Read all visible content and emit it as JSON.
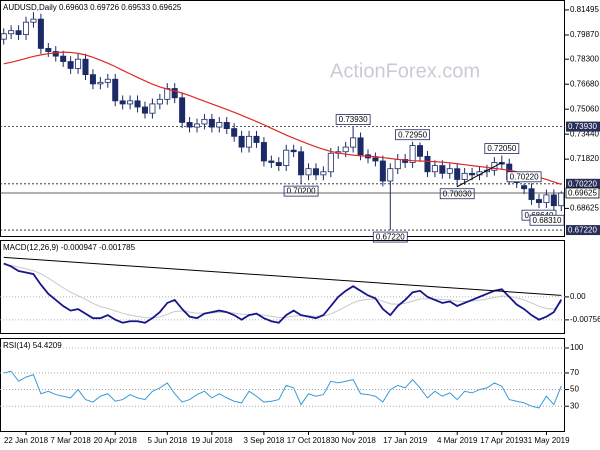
{
  "chart_data": [
    {
      "type": "candlestick",
      "title": "AUDUSD,Daily  0.69603 0.69726 0.69533 0.69625",
      "watermark": "ActionForex.com",
      "categories": [
        null,
        null,
        null,
        "22 Jan 2018",
        null,
        null,
        null,
        null,
        null,
        "7 Mar 2018",
        null,
        null,
        null,
        null,
        null,
        "20 Apr 2018",
        null,
        null,
        null,
        null,
        null,
        null,
        "5 Jun 2018",
        null,
        null,
        null,
        null,
        null,
        "19 Jul 2018",
        null,
        null,
        null,
        null,
        null,
        null,
        "3 Sep 2018",
        null,
        null,
        null,
        null,
        null,
        "17 Oct 2018",
        null,
        null,
        null,
        null,
        null,
        "30 Nov 2018",
        null,
        null,
        null,
        null,
        null,
        null,
        "17 Jan 2019",
        null,
        null,
        null,
        null,
        null,
        null,
        "4 Mar 2019",
        null,
        null,
        null,
        null,
        null,
        "17 Apr 2019",
        null,
        null,
        null,
        null,
        null,
        "31 May 2019",
        null,
        null
      ],
      "opens": [
        0.796,
        0.7995,
        0.8015,
        0.799,
        0.807,
        0.809,
        0.79,
        0.788,
        0.785,
        0.7815,
        0.777,
        0.783,
        0.773,
        0.767,
        0.768,
        0.77,
        0.756,
        0.754,
        0.756,
        0.752,
        0.748,
        0.754,
        0.757,
        0.764,
        0.758,
        0.742,
        0.739,
        0.741,
        0.744,
        0.739,
        0.742,
        0.738,
        0.733,
        0.726,
        0.733,
        0.729,
        0.717,
        0.716,
        0.714,
        0.724,
        0.723,
        0.708,
        0.712,
        0.708,
        0.71,
        0.722,
        0.723,
        0.726,
        0.732,
        0.721,
        0.719,
        0.717,
        0.704,
        0.712,
        0.718,
        0.716,
        0.727,
        0.72,
        0.71,
        0.714,
        0.709,
        0.712,
        0.705,
        0.709,
        0.708,
        0.71,
        0.711,
        0.716,
        0.715,
        0.705,
        0.701,
        0.699,
        0.692,
        0.69,
        0.695,
        0.688
      ],
      "highs": [
        0.803,
        0.805,
        0.805,
        0.8105,
        0.8136,
        0.8125,
        0.7935,
        0.7915,
        0.7885,
        0.785,
        0.7865,
        0.7865,
        0.7765,
        0.7715,
        0.7735,
        0.7735,
        0.7595,
        0.7595,
        0.7595,
        0.7555,
        0.7575,
        0.7605,
        0.7675,
        0.7675,
        0.7615,
        0.7455,
        0.7445,
        0.7475,
        0.7475,
        0.7455,
        0.7455,
        0.7415,
        0.7365,
        0.7365,
        0.7365,
        0.7325,
        0.7205,
        0.7195,
        0.7275,
        0.7275,
        0.7265,
        0.7155,
        0.7155,
        0.7135,
        0.7255,
        0.7265,
        0.7294,
        0.7393,
        0.7355,
        0.7245,
        0.7225,
        0.7205,
        0.7155,
        0.7215,
        0.7215,
        0.7295,
        0.729,
        0.7235,
        0.7175,
        0.7175,
        0.7155,
        0.7155,
        0.7125,
        0.7125,
        0.7135,
        0.7145,
        0.7195,
        0.7205,
        0.7185,
        0.7085,
        0.7022,
        0.7025,
        0.6955,
        0.6985,
        0.6985,
        0.6973
      ],
      "lows": [
        0.7925,
        0.796,
        0.7955,
        0.7955,
        0.8035,
        0.7865,
        0.7845,
        0.7815,
        0.778,
        0.7735,
        0.7735,
        0.7695,
        0.7635,
        0.7635,
        0.7645,
        0.7525,
        0.7505,
        0.7505,
        0.7485,
        0.7445,
        0.7445,
        0.7505,
        0.7535,
        0.7545,
        0.7385,
        0.7355,
        0.7355,
        0.7375,
        0.7355,
        0.7355,
        0.7345,
        0.7295,
        0.7225,
        0.7225,
        0.7255,
        0.7135,
        0.7125,
        0.7105,
        0.7105,
        0.7195,
        0.702,
        0.7045,
        0.7045,
        0.7045,
        0.7065,
        0.7185,
        0.7195,
        0.7225,
        0.7175,
        0.7155,
        0.7135,
        0.7005,
        0.6722,
        0.7085,
        0.7125,
        0.7125,
        0.7165,
        0.7065,
        0.7065,
        0.7055,
        0.7055,
        0.7003,
        0.7015,
        0.7045,
        0.7045,
        0.7065,
        0.7075,
        0.7115,
        0.7015,
        0.6995,
        0.6955,
        0.6885,
        0.6864,
        0.6865,
        0.6831,
        0.6845
      ],
      "closes": [
        0.7995,
        0.8015,
        0.799,
        0.807,
        0.809,
        0.79,
        0.788,
        0.785,
        0.7815,
        0.777,
        0.783,
        0.773,
        0.767,
        0.768,
        0.77,
        0.756,
        0.754,
        0.756,
        0.752,
        0.748,
        0.754,
        0.757,
        0.764,
        0.758,
        0.742,
        0.739,
        0.741,
        0.744,
        0.739,
        0.742,
        0.738,
        0.733,
        0.726,
        0.733,
        0.729,
        0.717,
        0.716,
        0.714,
        0.724,
        0.723,
        0.708,
        0.712,
        0.708,
        0.71,
        0.722,
        0.723,
        0.726,
        0.732,
        0.721,
        0.719,
        0.717,
        0.704,
        0.712,
        0.718,
        0.716,
        0.727,
        0.72,
        0.71,
        0.714,
        0.709,
        0.712,
        0.705,
        0.709,
        0.708,
        0.71,
        0.711,
        0.716,
        0.715,
        0.705,
        0.703,
        0.699,
        0.692,
        0.69,
        0.695,
        0.688,
        0.69625
      ],
      "color_up": "#ffffff",
      "color_down": "#1c2a66",
      "outline": "#1c2a66",
      "moving_average": {
        "color": "#e02828",
        "values": [
          0.78,
          0.781,
          0.7822,
          0.7835,
          0.7848,
          0.7858,
          0.7866,
          0.7872,
          0.7876,
          0.7874,
          0.7868,
          0.7858,
          0.7842,
          0.7824,
          0.7804,
          0.7782,
          0.7758,
          0.7735,
          0.7712,
          0.769,
          0.7668,
          0.765,
          0.7636,
          0.7624,
          0.761,
          0.7594,
          0.7576,
          0.7558,
          0.754,
          0.7522,
          0.7504,
          0.7486,
          0.7466,
          0.7446,
          0.7426,
          0.7405,
          0.7382,
          0.736,
          0.7338,
          0.7318,
          0.7298,
          0.728,
          0.7262,
          0.7246,
          0.7232,
          0.7222,
          0.7214,
          0.7208,
          0.7204,
          0.72,
          0.7198,
          0.7192,
          0.7186,
          0.718,
          0.7176,
          0.7172,
          0.717,
          0.7168,
          0.7166,
          0.7162,
          0.7158,
          0.7152,
          0.7146,
          0.714,
          0.7134,
          0.7128,
          0.7122,
          0.7116,
          0.711,
          0.71,
          0.709,
          0.7078,
          0.7064,
          0.705,
          0.7034,
          0.7018
        ]
      },
      "trendline": {
        "x": [
          61,
          67
        ],
        "values": [
          0.7003,
          0.716
        ]
      },
      "ylim": [
        0.6677,
        0.8214
      ],
      "yticks": [
        0.81495,
        {
          "value": 0.7987,
          "label": "0.79870"
        },
        {
          "value": 0.783,
          "label": "0.78300"
        },
        {
          "value": 0.7668,
          "label": "0.76680"
        },
        {
          "value": 0.7506,
          "label": "0.75060"
        },
        {
          "value": 0.7344,
          "label": "0.73440"
        },
        {
          "value": 0.7182,
          "label": "0.71820"
        },
        0.68625
      ],
      "levels": [
        {
          "value": 0.7393,
          "label": "0.73930"
        },
        {
          "value": 0.7022,
          "label": "0.70220"
        },
        {
          "value": 0.6722,
          "label": "0.67220"
        }
      ],
      "current_price": 0.69625,
      "annotations": [
        {
          "label": "0.73930",
          "value": 0.7393
        },
        {
          "label": "0.72950",
          "value": 0.7295
        },
        {
          "label": "0.72050",
          "value": 0.7205
        },
        {
          "label": "0.70220",
          "value": 0.7022
        },
        {
          "label": "0.70200",
          "value": 0.702
        },
        {
          "label": "0.70030",
          "value": 0.7003
        },
        {
          "label": "0.68640",
          "value": 0.6864
        },
        {
          "label": "0.68310",
          "value": 0.6831
        },
        {
          "label": "0.67220",
          "value": 0.6722
        }
      ],
      "grid": false
    },
    {
      "type": "line",
      "title": "MACD(12,26,9) -0.000947 -0.001785",
      "series": [
        {
          "color": "#c8c8c8",
          "values": [
            0.0105,
            0.0104,
            0.0098,
            0.0092,
            0.0086,
            0.0076,
            0.0062,
            0.0046,
            0.003,
            0.0015,
            0.0004,
            -0.0008,
            -0.0021,
            -0.0032,
            -0.0038,
            -0.0046,
            -0.0054,
            -0.006,
            -0.0064,
            -0.0068,
            -0.0069,
            -0.0066,
            -0.0057,
            -0.0048,
            -0.0046,
            -0.005,
            -0.0054,
            -0.0054,
            -0.0053,
            -0.0051,
            -0.0051,
            -0.0053,
            -0.0057,
            -0.0058,
            -0.0057,
            -0.006,
            -0.0064,
            -0.0068,
            -0.0067,
            -0.0063,
            -0.0062,
            -0.0062,
            -0.0064,
            -0.0063,
            -0.0056,
            -0.0045,
            -0.0032,
            -0.0019,
            -0.0011,
            -0.0008,
            -0.0007,
            -0.0014,
            -0.0023,
            -0.0024,
            -0.0021,
            -0.0014,
            -0.0007,
            -0.0006,
            -0.0007,
            -0.0009,
            -0.001,
            -0.0014,
            -0.0015,
            -0.0014,
            -0.0011,
            -0.0007,
            -0.0002,
            0.0003,
            0.0002,
            -0.0003,
            -0.001,
            -0.002,
            -0.0031,
            -0.0038,
            -0.004,
            -0.0018
          ]
        },
        {
          "color": "#16168a",
          "values": [
            0.011,
            0.01,
            0.0085,
            0.008,
            0.0075,
            0.004,
            0.001,
            -0.001,
            -0.003,
            -0.0045,
            -0.004,
            -0.0055,
            -0.007,
            -0.007,
            -0.006,
            -0.0075,
            -0.0085,
            -0.008,
            -0.008,
            -0.0085,
            -0.007,
            -0.005,
            -0.002,
            -0.001,
            -0.004,
            -0.0065,
            -0.007,
            -0.0055,
            -0.005,
            -0.0045,
            -0.005,
            -0.006,
            -0.0075,
            -0.006,
            -0.0055,
            -0.007,
            -0.008,
            -0.0085,
            -0.006,
            -0.0045,
            -0.006,
            -0.0065,
            -0.007,
            -0.006,
            -0.003,
            0.0,
            0.002,
            0.0035,
            0.002,
            0.0005,
            -0.0005,
            -0.004,
            -0.006,
            -0.003,
            -0.001,
            0.0015,
            0.002,
            0.0,
            -0.001,
            -0.002,
            -0.0015,
            -0.003,
            -0.002,
            -0.001,
            0.0,
            0.001,
            0.002,
            0.0025,
            0.0,
            -0.0025,
            -0.004,
            -0.006,
            -0.0075,
            -0.0065,
            -0.005,
            -0.0009
          ]
        }
      ],
      "trendline": {
        "x": [
          0,
          75
        ],
        "values": [
          0.013,
          0.0005
        ]
      },
      "ylim": [
        -0.0122,
        0.0187
      ],
      "yticks": [
        {
          "value": 0,
          "label": "0.00"
        },
        -0.00756
      ],
      "grid": true
    },
    {
      "type": "line",
      "title": "RSI(14) 54.4209",
      "series": [
        {
          "color": "#3c9ad8",
          "values": [
            70,
            72,
            60,
            65,
            68,
            45,
            48,
            44,
            42,
            40,
            50,
            38,
            35,
            42,
            45,
            36,
            38,
            44,
            40,
            38,
            48,
            52,
            58,
            45,
            35,
            38,
            44,
            48,
            40,
            45,
            40,
            36,
            34,
            48,
            42,
            35,
            36,
            38,
            55,
            52,
            32,
            45,
            42,
            44,
            60,
            58,
            60,
            62,
            45,
            44,
            42,
            35,
            50,
            55,
            52,
            62,
            52,
            40,
            48,
            42,
            46,
            38,
            48,
            46,
            50,
            52,
            58,
            54,
            38,
            36,
            34,
            30,
            28,
            42,
            32,
            54.4209
          ]
        }
      ],
      "ylim": [
        -1,
        112
      ],
      "yticks": [
        100,
        70,
        50,
        30
      ],
      "grid": true
    }
  ]
}
